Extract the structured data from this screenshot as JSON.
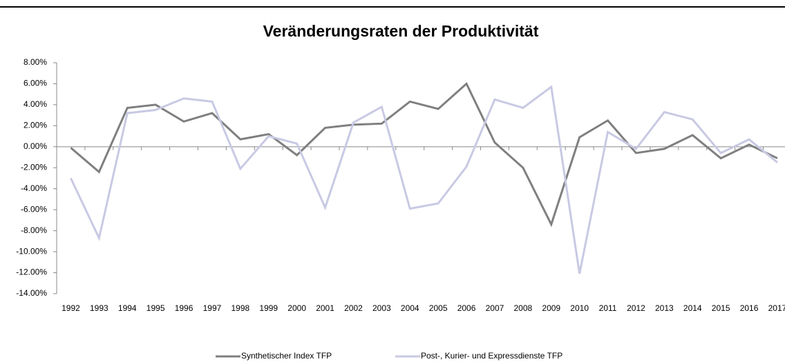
{
  "chart_data": {
    "type": "line",
    "title": "Veränderungsraten der Produktivität",
    "categories": [
      "1992",
      "1993",
      "1994",
      "1995",
      "1996",
      "1997",
      "1998",
      "1999",
      "2000",
      "2001",
      "2002",
      "2003",
      "2004",
      "2005",
      "2006",
      "2007",
      "2008",
      "2009",
      "2010",
      "2011",
      "2012",
      "2013",
      "2014",
      "2015",
      "2016",
      "2017"
    ],
    "series": [
      {
        "name": "Synthetischer Index TFP",
        "color": "#7f7f7f",
        "values": [
          -0.1,
          -2.4,
          3.7,
          4.0,
          2.4,
          3.2,
          0.7,
          1.2,
          -0.8,
          1.8,
          2.1,
          2.2,
          4.3,
          3.6,
          6.0,
          0.4,
          -2.0,
          -7.4,
          0.9,
          2.5,
          -0.6,
          -0.2,
          1.1,
          -1.1,
          0.2,
          -1.1
        ]
      },
      {
        "name": "Post-, Kurier- und Expressdienste TFP",
        "color": "#c8c9e3",
        "values": [
          -3.0,
          -8.7,
          3.2,
          3.5,
          4.6,
          4.3,
          -2.1,
          1.0,
          0.3,
          -5.8,
          2.3,
          3.8,
          -5.9,
          -5.4,
          -1.9,
          4.5,
          3.7,
          5.7,
          -12.1,
          1.4,
          -0.2,
          3.3,
          2.6,
          -0.6,
          0.7,
          -1.5
        ]
      }
    ],
    "ylim": [
      -14,
      8
    ],
    "yticks": [
      {
        "value": 8,
        "label": "8.00%"
      },
      {
        "value": 6,
        "label": "6.00%"
      },
      {
        "value": 4,
        "label": "4.00%"
      },
      {
        "value": 2,
        "label": "2.00%"
      },
      {
        "value": 0,
        "label": "0.00%"
      },
      {
        "value": -2,
        "label": "-2.00%"
      },
      {
        "value": -4,
        "label": "-4.00%"
      },
      {
        "value": -6,
        "label": "-6.00%"
      },
      {
        "value": -8,
        "label": "-8.00%"
      },
      {
        "value": -10,
        "label": "-10.00%"
      },
      {
        "value": -12,
        "label": "-12.00%"
      },
      {
        "value": -14,
        "label": "-14.00%"
      }
    ],
    "grid": false,
    "legend": "bottom"
  }
}
